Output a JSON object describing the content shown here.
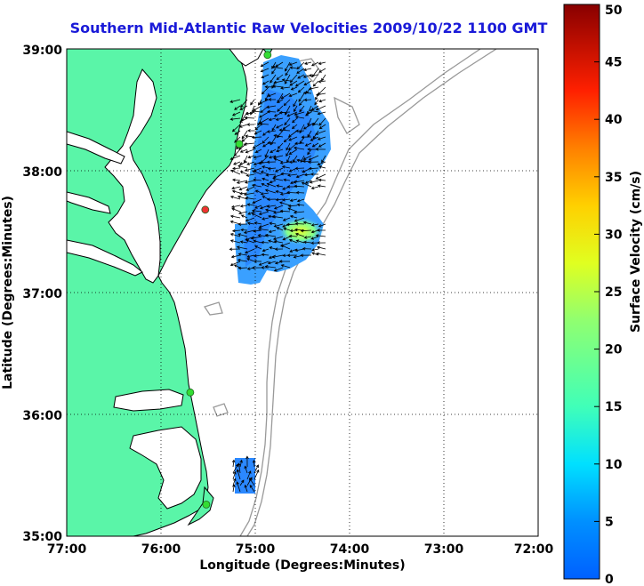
{
  "title": "Southern Mid-Atlantic Raw Velocities 2009/10/22 1100 GMT",
  "map": {
    "x_axis": {
      "label": "Longitude (Degrees:Minutes)",
      "ticks": [
        "77:00",
        "76:00",
        "75:00",
        "74:00",
        "73:00",
        "72:00"
      ],
      "range": [
        -77,
        -72
      ]
    },
    "y_axis": {
      "label": "Latitude (Degrees:Minutes)",
      "ticks": [
        "39:00",
        "38:00",
        "37:00",
        "36:00",
        "35:00"
      ],
      "range": [
        35,
        39
      ]
    },
    "grid": "dotted",
    "land_color": "#5af5a8",
    "stations": [
      {
        "lon": -74.87,
        "lat": 38.95,
        "color": "#33dd33"
      },
      {
        "lon": -75.17,
        "lat": 38.22,
        "color": "#33dd33"
      },
      {
        "lon": -75.53,
        "lat": 37.68,
        "color": "#ee3333"
      },
      {
        "lon": -75.69,
        "lat": 36.18,
        "color": "#33dd33"
      },
      {
        "lon": -75.52,
        "lat": 35.26,
        "color": "#33dd33"
      }
    ]
  },
  "colorbar": {
    "label": "Surface Velocity (cm/s)",
    "ticks": [
      "0",
      "5",
      "10",
      "15",
      "20",
      "25",
      "30",
      "35",
      "40",
      "45",
      "50"
    ],
    "min": 0,
    "max": 50,
    "colors": [
      "#0000ff",
      "#00aaff",
      "#00ffff",
      "#55ffaa",
      "#aaff55",
      "#ffff00",
      "#ffaa00",
      "#ff5500",
      "#ff0000",
      "#800000"
    ]
  }
}
